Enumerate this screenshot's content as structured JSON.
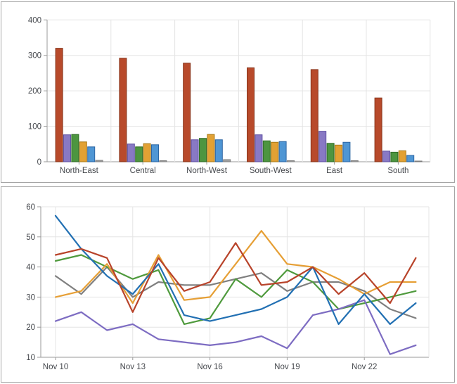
{
  "chart_data": [
    {
      "type": "bar",
      "title": "",
      "categories": [
        "North-East",
        "Central",
        "North-West",
        "South-West",
        "East",
        "South"
      ],
      "series": [
        {
          "name": "series-red",
          "color": "#b84a2b",
          "stroke": "#86341a",
          "values": [
            320,
            292,
            278,
            265,
            260,
            180
          ]
        },
        {
          "name": "series-purple",
          "color": "#8879c4",
          "stroke": "#5e50a2",
          "values": [
            76,
            50,
            62,
            76,
            86,
            30
          ]
        },
        {
          "name": "series-green",
          "color": "#4d9540",
          "stroke": "#306b27",
          "values": [
            77,
            42,
            66,
            59,
            52,
            27
          ]
        },
        {
          "name": "series-orange",
          "color": "#e2a134",
          "stroke": "#aa7a17",
          "values": [
            56,
            51,
            77,
            55,
            47,
            31
          ]
        },
        {
          "name": "series-blue",
          "color": "#4f96d4",
          "stroke": "#2d66a4",
          "values": [
            42,
            48,
            62,
            57,
            55,
            18
          ]
        },
        {
          "name": "series-gray",
          "color": "#a3a3a3",
          "stroke": "#7d7d7d",
          "values": [
            4,
            3,
            6,
            3,
            3,
            2
          ]
        }
      ],
      "ylabel": "",
      "xlabel": "",
      "y_ticks": [
        0,
        100,
        200,
        300,
        400
      ],
      "ylim": [
        0,
        400
      ],
      "grid": true,
      "legend": "none"
    },
    {
      "type": "line",
      "title": "",
      "x": [
        "Nov 10",
        "Nov 11",
        "Nov 12",
        "Nov 13",
        "Nov 14",
        "Nov 15",
        "Nov 16",
        "Nov 17",
        "Nov 18",
        "Nov 19",
        "Nov 20",
        "Nov 21",
        "Nov 22",
        "Nov 23",
        "Nov 24"
      ],
      "x_tick_labels": [
        "Nov 10",
        "Nov 13",
        "Nov 16",
        "Nov 19",
        "Nov 22"
      ],
      "x_tick_indices": [
        0,
        3,
        6,
        9,
        12
      ],
      "series": [
        {
          "name": "series-gray",
          "color": "#7f7f7f",
          "values": [
            37,
            31,
            40,
            30,
            35,
            34,
            34,
            36,
            38,
            32,
            35,
            35,
            32,
            26,
            23
          ]
        },
        {
          "name": "series-green",
          "color": "#4f9a3d",
          "values": [
            42,
            44,
            40,
            36,
            39,
            21,
            23,
            36,
            30,
            39,
            35,
            26,
            28,
            30,
            32
          ]
        },
        {
          "name": "series-orange",
          "color": "#e69f35",
          "values": [
            30,
            32,
            41,
            28,
            44,
            29,
            30,
            41,
            52,
            41,
            40,
            36,
            31,
            35,
            35
          ]
        },
        {
          "name": "series-purple",
          "color": "#7d6cc2",
          "values": [
            22,
            25,
            19,
            21,
            16,
            15,
            14,
            15,
            17,
            13,
            24,
            26,
            29,
            11,
            14
          ]
        },
        {
          "name": "series-blue",
          "color": "#2270b3",
          "values": [
            57,
            46,
            37,
            31,
            41,
            24,
            22,
            24,
            26,
            30,
            40,
            21,
            31,
            21,
            28
          ]
        },
        {
          "name": "series-red",
          "color": "#b8432a",
          "values": [
            44,
            46,
            43,
            25,
            43,
            32,
            35,
            48,
            34,
            35,
            40,
            31,
            38,
            28,
            43
          ]
        }
      ],
      "ylabel": "",
      "xlabel": "",
      "y_ticks": [
        10,
        20,
        30,
        40,
        50,
        60
      ],
      "ylim": [
        10,
        60
      ],
      "grid": true,
      "legend": "none"
    }
  ],
  "colors": {
    "grid": "#e4e4e4",
    "axis": "#9a9a9a",
    "label": "#45484d",
    "panel_border": "#a5a5a5",
    "background": "#ffffff"
  }
}
